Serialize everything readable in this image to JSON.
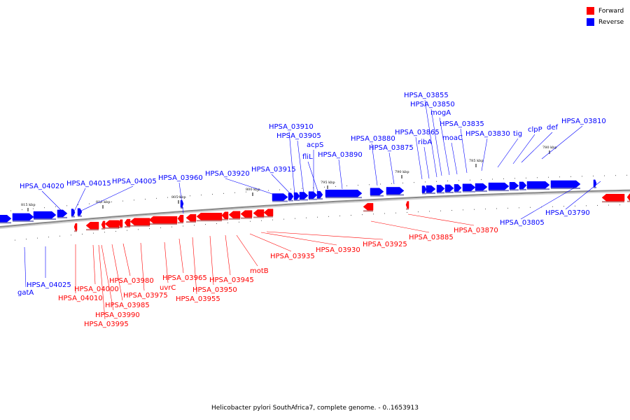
{
  "caption": "Helicobacter pylori SouthAfrica7, complete genome. - 0..1653913",
  "legend": [
    {
      "label": "Forward",
      "color": "#ff0000"
    },
    {
      "label": "Reverse",
      "color": "#0000ff"
    }
  ],
  "colors": {
    "forward": "#ff0000",
    "reverse": "#0000ff",
    "backbone": "#888888"
  },
  "kbp_ticks": [
    "815 kbp",
    "810 kbp",
    "805 kbp",
    "800 kbp",
    "795 kbp",
    "790 kbp",
    "785 kbp",
    "780 kbp"
  ],
  "forward_genes": [
    "HPSA_04000",
    "HPSA_04010",
    "HPSA_03985",
    "HPSA_03990",
    "HPSA_03995",
    "HPSA_03980",
    "HPSA_03975",
    "uvrC",
    "HPSA_03965",
    "HPSA_03955",
    "HPSA_03950",
    "HPSA_03945",
    "motB",
    "HPSA_03935",
    "HPSA_03930",
    "HPSA_03925",
    "HPSA_03885",
    "HPSA_03870"
  ],
  "reverse_genes": [
    "HPSA_04020",
    "HPSA_04015",
    "HPSA_04005",
    "HPSA_03960",
    "HPSA_03920",
    "HPSA_03915",
    "HPSA_03910",
    "HPSA_03905",
    "acpS",
    "fliL",
    "HPSA_03890",
    "HPSA_03880",
    "HPSA_03875",
    "HPSA_03865",
    "ribA",
    "HPSA_03855",
    "HPSA_03850",
    "mogA",
    "moaC",
    "HPSA_03835",
    "HPSA_03830",
    "tig",
    "clpP",
    "def",
    "HPSA_03810",
    "HPSA_04025",
    "gatA",
    "HPSA_03805",
    "HPSA_03790"
  ]
}
